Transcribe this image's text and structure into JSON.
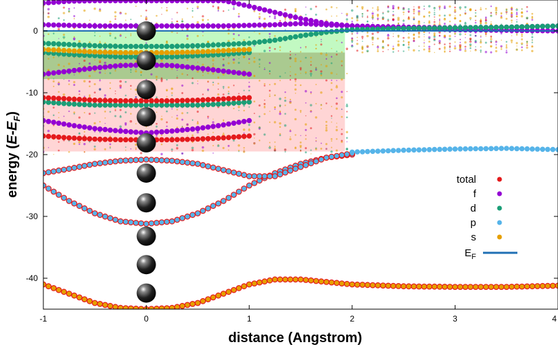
{
  "chart_data": {
    "type": "scatter",
    "title": "",
    "xlabel": "distance (Angstrom)",
    "ylabel_parts": {
      "main": "energy (",
      "e": "E",
      "minus": "-",
      "ef_main": "E",
      "ef_sub": "F",
      "close": ")"
    },
    "xlim": [
      -1,
      4
    ],
    "ylim": [
      -45,
      5
    ],
    "xticks": [
      -1,
      0,
      1,
      2,
      3,
      4
    ],
    "yticks": [
      -40,
      -30,
      -20,
      -10,
      0
    ],
    "fermi_level": 0,
    "legend_position": "right",
    "legend": [
      {
        "name": "total",
        "color": "#e41a1c"
      },
      {
        "name": "f",
        "color": "#9400d3"
      },
      {
        "name": "d",
        "color": "#1b9e77"
      },
      {
        "name": "p",
        "color": "#56b4e9"
      },
      {
        "name": "s",
        "color": "#e69f00"
      }
    ],
    "fermi_legend": {
      "main": "E",
      "sub": "F",
      "color": "#1f6fb4"
    },
    "shaded_bands": [
      {
        "x": [
          -1,
          1.93
        ],
        "y": [
          -3.5,
          0
        ],
        "color": "#9af59a",
        "opacity": 0.6
      },
      {
        "x": [
          -1,
          1.93
        ],
        "y": [
          -7.8,
          -3.5
        ],
        "color": "#8db86b",
        "opacity": 0.75
      },
      {
        "x": [
          -1,
          1.93
        ],
        "y": [
          -19.5,
          -7.8
        ],
        "color": "#ffb3b3",
        "opacity": 0.55
      }
    ],
    "atoms": {
      "x": 0,
      "y": [
        0,
        -4.8,
        -9.5,
        -13.9,
        -18.1,
        -23.0,
        -27.8,
        -33.2,
        -37.8,
        -42.4
      ]
    },
    "series": [
      {
        "orbital": "s",
        "color": "#e69f00",
        "outline": "#e41a1c",
        "x": [
          -1.0,
          -0.75,
          -0.5,
          -0.25,
          0.0,
          0.25,
          0.5,
          0.75,
          1.0,
          1.25,
          1.5,
          1.75,
          2.0,
          2.5,
          3.0,
          3.5,
          4.0
        ],
        "y": [
          -41.0,
          -42.5,
          -44.0,
          -44.8,
          -45.0,
          -44.8,
          -44.0,
          -42.5,
          -41.0,
          -40.2,
          -40.2,
          -40.6,
          -41.0,
          -41.3,
          -41.4,
          -41.4,
          -41.2
        ]
      },
      {
        "orbital": "p",
        "color": "#56b4e9",
        "outline": "#e41a1c",
        "x": [
          -1.0,
          -0.75,
          -0.5,
          -0.25,
          0.0,
          0.25,
          0.5,
          0.75,
          1.0,
          1.25,
          1.5,
          1.75,
          2.0
        ],
        "y": [
          -25.0,
          -27.5,
          -29.5,
          -30.8,
          -31.2,
          -30.8,
          -29.5,
          -27.5,
          -25.0,
          -23.0,
          -21.5,
          -20.5,
          -20.0
        ]
      },
      {
        "orbital": "p",
        "color": "#56b4e9",
        "outline": "#e41a1c",
        "x": [
          -1.0,
          -0.75,
          -0.5,
          -0.25,
          0.0,
          0.25,
          0.5,
          0.75,
          1.0,
          1.25,
          1.5,
          1.75,
          2.0
        ],
        "y": [
          -23.0,
          -22.3,
          -21.5,
          -21.0,
          -20.8,
          -21.0,
          -21.5,
          -22.5,
          -23.5,
          -23.5,
          -22.0,
          -20.5,
          -19.8
        ]
      },
      {
        "orbital": "p",
        "color": "#56b4e9",
        "outline": "",
        "x": [
          2.0,
          2.5,
          3.0,
          3.5,
          4.0
        ],
        "y": [
          -19.6,
          -19.3,
          -19.1,
          -19.0,
          -19.2
        ]
      },
      {
        "orbital": "f",
        "color": "#9400d3",
        "outline": "",
        "x": [
          -1.0,
          -0.75,
          -0.5,
          -0.25,
          0.0,
          0.25,
          0.5,
          0.75,
          1.0,
          1.25,
          1.5,
          1.75,
          2.0,
          2.5,
          3.0,
          3.5,
          4.0
        ],
        "y": [
          4.5,
          4.8,
          4.9,
          4.9,
          4.9,
          4.9,
          4.9,
          4.9,
          4.0,
          3.0,
          2.0,
          1.2,
          0.8,
          0.4,
          0.2,
          0.1,
          0.0
        ]
      },
      {
        "orbital": "f",
        "color": "#9400d3",
        "outline": "",
        "x": [
          -1.0,
          -0.75,
          -0.5,
          -0.25,
          0.0,
          0.25,
          0.5,
          0.75,
          1.0,
          1.25,
          1.5,
          1.75,
          2.0,
          2.5,
          3.0,
          3.5,
          4.0
        ],
        "y": [
          1.0,
          0.9,
          0.8,
          0.8,
          0.8,
          0.8,
          0.8,
          0.8,
          0.9,
          1.0,
          1.2,
          1.0,
          0.8,
          0.6,
          0.5,
          0.6,
          0.8
        ]
      },
      {
        "orbital": "f",
        "color": "#9400d3",
        "outline": "",
        "x": [
          -1.0,
          -0.75,
          -0.5,
          -0.25,
          0.0,
          0.25,
          0.5,
          0.75,
          1.0
        ],
        "y": [
          -7.0,
          -6.5,
          -6.0,
          -5.6,
          -5.5,
          -5.6,
          -6.0,
          -6.5,
          -7.0
        ]
      },
      {
        "orbital": "f",
        "color": "#9400d3",
        "outline": "",
        "x": [
          -1.0,
          -0.75,
          -0.5,
          -0.25,
          0.0,
          0.25,
          0.5,
          0.75,
          1.0
        ],
        "y": [
          -14.5,
          -15.2,
          -15.8,
          -16.2,
          -16.5,
          -16.2,
          -15.8,
          -15.2,
          -14.5
        ]
      },
      {
        "orbital": "d",
        "color": "#1b9e77",
        "outline": "",
        "x": [
          -1.0,
          -0.75,
          -0.5,
          -0.25,
          0.0,
          0.25,
          0.5,
          0.75,
          1.0,
          1.25,
          1.5,
          1.75,
          2.0,
          2.5,
          3.0,
          3.5,
          4.0
        ],
        "y": [
          -2.0,
          -2.2,
          -2.4,
          -2.5,
          -2.5,
          -2.5,
          -2.4,
          -2.2,
          -2.0,
          -1.5,
          -0.8,
          -0.2,
          0.2,
          0.4,
          0.5,
          0.6,
          0.8
        ]
      },
      {
        "orbital": "d",
        "color": "#1b9e77",
        "outline": "",
        "x": [
          -1.0,
          -0.75,
          -0.5,
          -0.25,
          0.0,
          0.25,
          0.5,
          0.75,
          1.0
        ],
        "y": [
          -3.5,
          -3.8,
          -4.0,
          -4.2,
          -4.2,
          -4.2,
          -4.0,
          -3.8,
          -3.5
        ]
      },
      {
        "orbital": "d",
        "color": "#1b9e77",
        "outline": "",
        "x": [
          -1.0,
          -0.75,
          -0.5,
          -0.25,
          0.0,
          0.25,
          0.5,
          0.75,
          1.0
        ],
        "y": [
          -11.5,
          -11.8,
          -12.0,
          -12.0,
          -12.0,
          -12.0,
          -12.0,
          -11.8,
          -11.5
        ]
      },
      {
        "orbital": "total",
        "color": "#e41a1c",
        "outline": "",
        "x": [
          -1.0,
          -0.75,
          -0.5,
          -0.25,
          0.0,
          0.25,
          0.5,
          0.75,
          1.0
        ],
        "y": [
          -10.8,
          -11.0,
          -11.2,
          -11.3,
          -11.3,
          -11.3,
          -11.2,
          -11.0,
          -10.8
        ]
      },
      {
        "orbital": "total",
        "color": "#e41a1c",
        "outline": "",
        "x": [
          -1.0,
          -0.75,
          -0.5,
          -0.25,
          0.0,
          0.25,
          0.5,
          0.75,
          1.0
        ],
        "y": [
          -17.0,
          -17.3,
          -17.5,
          -17.6,
          -17.6,
          -17.6,
          -17.5,
          -17.3,
          -17.0
        ]
      },
      {
        "orbital": "s",
        "color": "#e69f00",
        "outline": "",
        "x": [
          -1.0,
          -0.75,
          -0.5,
          -0.25,
          0.0,
          0.25,
          0.5,
          0.75,
          1.0
        ],
        "y": [
          -3.0,
          -3.2,
          -3.4,
          -3.5,
          -3.5,
          -3.5,
          -3.4,
          -3.2,
          -3.0
        ]
      }
    ]
  }
}
